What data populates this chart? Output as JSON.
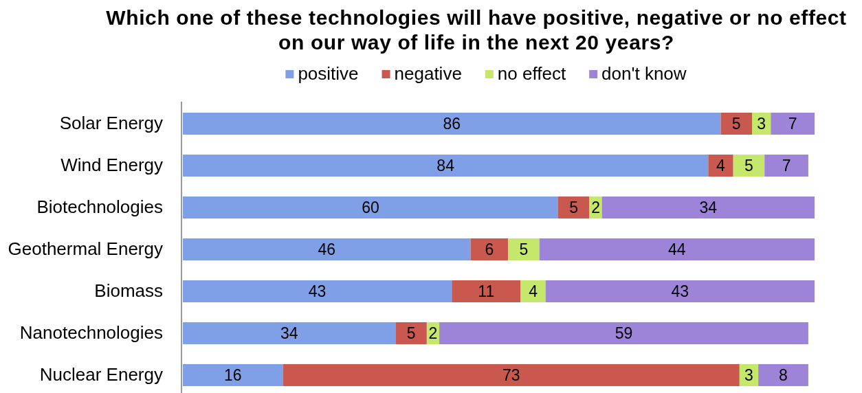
{
  "chart_data": {
    "type": "bar",
    "orientation": "horizontal",
    "stacked": true,
    "title": "Which one of these technologies will have positive, negative or no effect on our way of life in the next 20 years?",
    "categories": [
      "Solar Energy",
      "Wind Energy",
      "Biotechnologies",
      "Geothermal Energy",
      "Biomass",
      "Nanotechnologies",
      "Nuclear Energy"
    ],
    "series": [
      {
        "name": "positive",
        "color": "#7f9fe6",
        "values": [
          86,
          84,
          60,
          46,
          43,
          34,
          16
        ]
      },
      {
        "name": "negative",
        "color": "#c9584f",
        "values": [
          5,
          4,
          5,
          6,
          11,
          5,
          73
        ]
      },
      {
        "name": "no effect",
        "color": "#c5e86c",
        "values": [
          3,
          5,
          2,
          5,
          4,
          2,
          3
        ]
      },
      {
        "name": "don't know",
        "color": "#9e84d8",
        "values": [
          7,
          7,
          34,
          44,
          43,
          59,
          8
        ]
      }
    ],
    "xlim": [
      0,
      101
    ],
    "data_labels": true,
    "legend": "top",
    "tick_labels": "y"
  }
}
